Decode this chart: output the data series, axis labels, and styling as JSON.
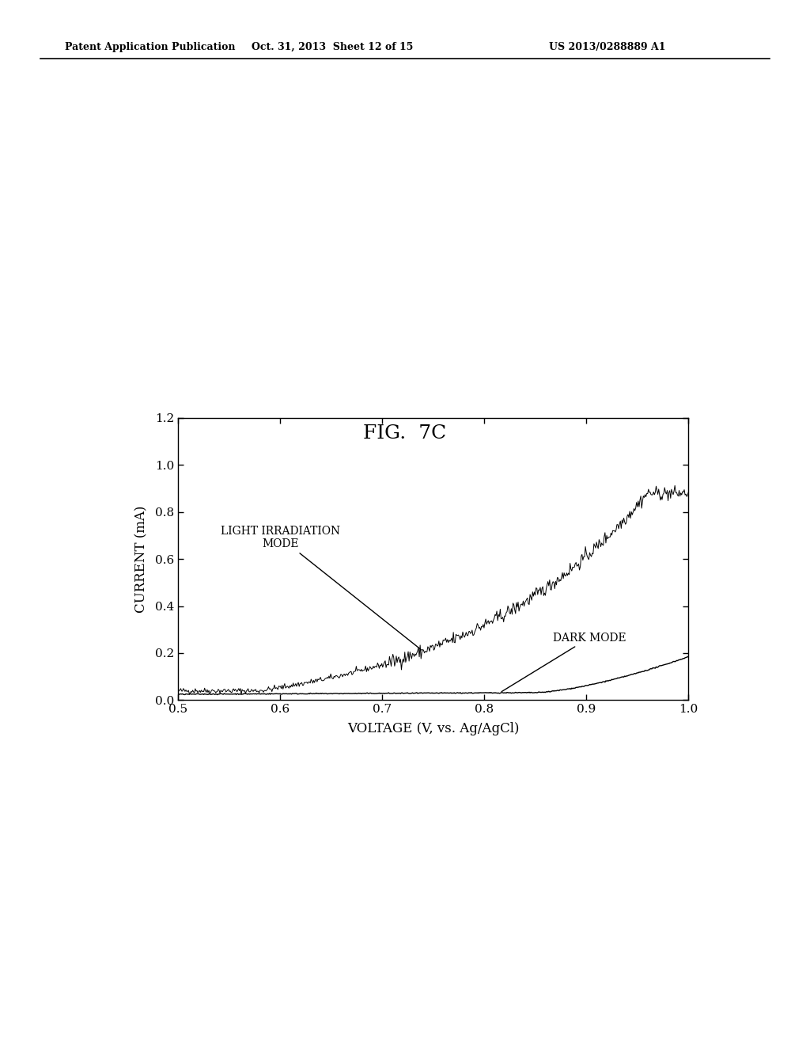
{
  "fig_title": "FIG.  7C",
  "header_left": "Patent Application Publication",
  "header_center": "Oct. 31, 2013  Sheet 12 of 15",
  "header_right": "US 2013/0288889 A1",
  "xlabel": "VOLTAGE (V, vs. Ag/AgCl)",
  "ylabel": "CURRENT (mA)",
  "xlim": [
    0.5,
    1.0
  ],
  "ylim": [
    0.0,
    1.2
  ],
  "xticks": [
    0.5,
    0.6,
    0.7,
    0.8,
    0.9,
    1.0
  ],
  "yticks": [
    0.0,
    0.2,
    0.4,
    0.6,
    0.8,
    1.0,
    1.2
  ],
  "light_label": "LIGHT IRRADIATION\nMODE",
  "dark_label": "DARK MODE",
  "line_color": "#000000",
  "background_color": "#ffffff",
  "noise_amplitude_light": 0.012,
  "noise_amplitude_dark": 0.001,
  "header_fontsize": 9,
  "title_fontsize": 18,
  "axis_label_fontsize": 12,
  "tick_fontsize": 11,
  "annotation_fontsize": 10
}
